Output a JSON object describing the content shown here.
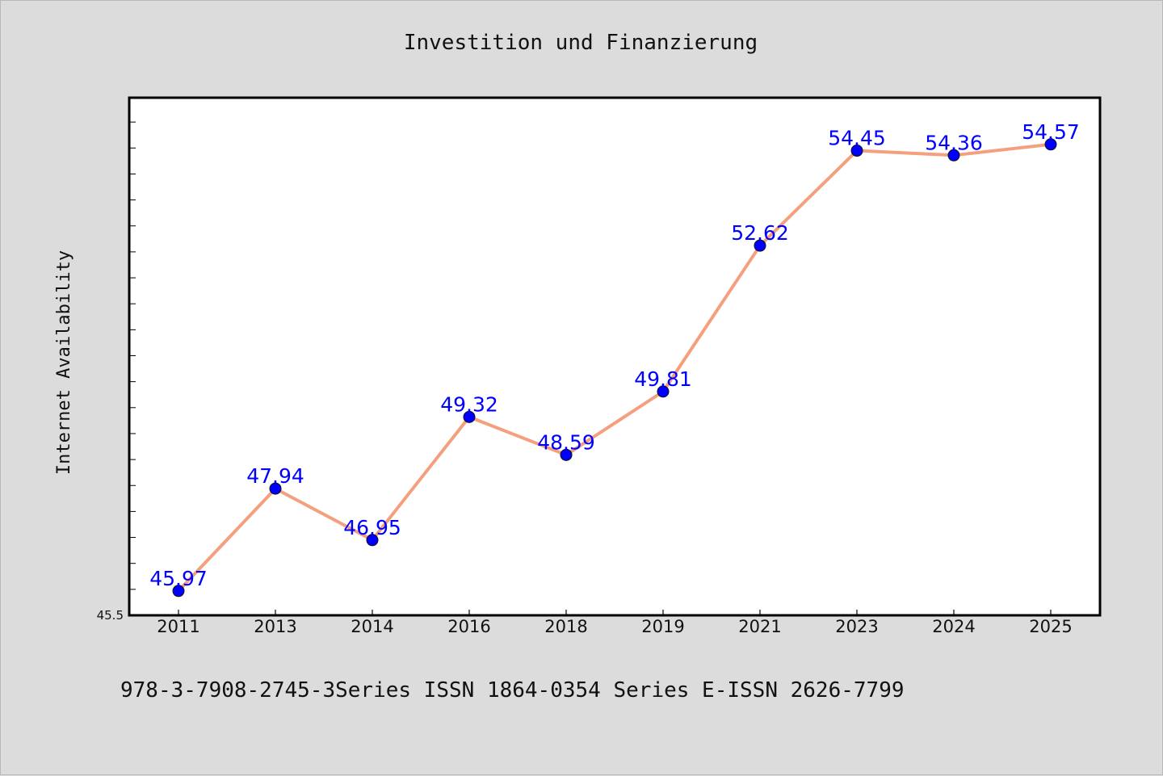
{
  "chart_data": {
    "type": "line",
    "title": "Investition und Finanzierung",
    "xlabel": "",
    "ylabel": "Internet Availability",
    "categories": [
      "2011",
      "2013",
      "2014",
      "2016",
      "2018",
      "2019",
      "2021",
      "2023",
      "2024",
      "2025"
    ],
    "series": [
      {
        "values": [
          45.97,
          47.94,
          46.95,
          49.32,
          48.59,
          49.81,
          52.62,
          54.45,
          54.36,
          54.57
        ],
        "line_color": "#f4a07e",
        "marker_color": "#0000ff",
        "label_color": "#0000ff"
      }
    ],
    "ytick_labels": [
      "45.5"
    ],
    "ylim": [
      45.5,
      55.5
    ],
    "grid": false,
    "legend": "none",
    "footnote": "978-3-7908-2745-3Series ISSN 1864-0354 Series E-ISSN 2626-7799"
  }
}
